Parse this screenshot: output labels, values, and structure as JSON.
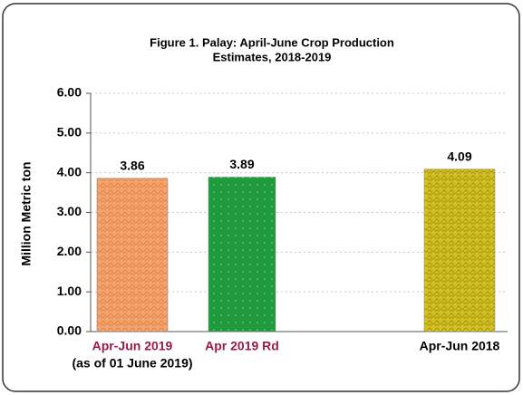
{
  "chart_data": {
    "type": "bar",
    "title": [
      "Figure 1. Palay:  April-June Crop Production",
      "Estimates,  2018-2019"
    ],
    "y_label": "Million Metric ton",
    "categories": [
      "Apr-Jun 2019",
      "Apr 2019 Rd",
      "Apr-Jun 2018"
    ],
    "annotations": [
      "(as of 01 June 2019)"
    ],
    "category_colors": [
      "#9b1b40",
      "#9b1b40",
      "#000000"
    ],
    "values": [
      3.86,
      3.89,
      4.09
    ],
    "colors": [
      "#f4a56c",
      "#1f9a3c",
      "#d2bf22"
    ],
    "ylim": [
      0,
      6
    ],
    "yticks": [
      {
        "value": 0,
        "label": "0.00"
      },
      {
        "value": 1,
        "label": "1.00"
      },
      {
        "value": 2,
        "label": "2.00"
      },
      {
        "value": 3,
        "label": "3.00"
      },
      {
        "value": 4,
        "label": "4.00"
      },
      {
        "value": 5,
        "label": "5.00"
      },
      {
        "value": 6,
        "label": "6.00"
      }
    ],
    "grid": true
  }
}
